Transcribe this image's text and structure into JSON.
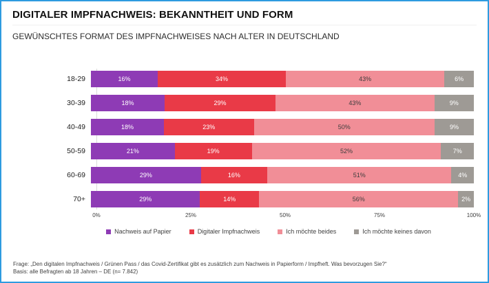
{
  "header": {
    "title": "DIGITALER IMPFNACHWEIS: BEKANNTHEIT UND FORM",
    "subtitle": "GEWÜNSCHTES FORMAT DES IMPFNACHWEISES NACH ALTER IN DEUTSCHLAND"
  },
  "colors": {
    "frame_border": "#2e9be0",
    "purple": "#8e3bb5",
    "red": "#e93a47",
    "pink": "#f18e97",
    "gray": "#9e9a95",
    "axis_line": "#d9d9d9"
  },
  "chart_data": {
    "type": "bar",
    "orientation": "horizontal",
    "stacked": true,
    "categories": [
      "18-29",
      "30-39",
      "40-49",
      "50-59",
      "60-69",
      "70+"
    ],
    "series": [
      {
        "name": "Nachweis auf Papier",
        "color": "#8e3bb5",
        "label_color": "#ffffff",
        "values": [
          16,
          18,
          18,
          21,
          29,
          29
        ]
      },
      {
        "name": "Digitaler Impfnachweis",
        "color": "#e93a47",
        "label_color": "#ffffff",
        "values": [
          34,
          29,
          23,
          19,
          16,
          14
        ]
      },
      {
        "name": "Ich möchte beides",
        "color": "#f18e97",
        "label_color": "#3d3d3d",
        "values": [
          43,
          43,
          50,
          52,
          51,
          56
        ]
      },
      {
        "name": "Ich möchte keines davon",
        "color": "#9e9a95",
        "label_color": "#ffffff",
        "values": [
          6,
          9,
          9,
          7,
          4,
          2
        ]
      }
    ],
    "data_label_suffix": "%",
    "x_ticks": [
      "0%",
      "25%",
      "50%",
      "75%",
      "100%"
    ],
    "x_tick_positions": [
      0,
      25,
      50,
      75,
      100
    ],
    "xlim": [
      0,
      100
    ],
    "grid": false,
    "legend_position": "bottom"
  },
  "footer": {
    "line1": "Frage: „Den digitalen Impfnachweis / Grünen Pass / das Covid-Zertifikat  gibt es zusätzlich zum Nachweis in Papierform / Impfheft. Was bevorzugen Sie?“",
    "line2": "Basis: alle Befragten ab 18 Jahren – DE (n= 7.842)"
  }
}
